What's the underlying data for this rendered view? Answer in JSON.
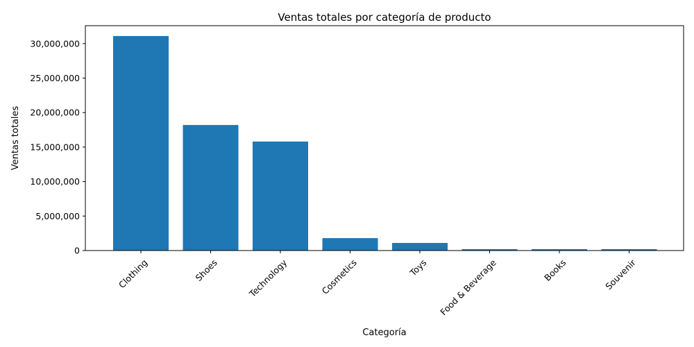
{
  "chart_data": {
    "type": "bar",
    "title": "Ventas totales por categoría de producto",
    "xlabel": "Categoría",
    "ylabel": "Ventas totales",
    "categories": [
      "Clothing",
      "Shoes",
      "Technology",
      "Cosmetics",
      "Toys",
      "Food & Beverage",
      "Books",
      "Souvenir"
    ],
    "values": [
      31100000,
      18200000,
      15800000,
      1800000,
      1100000,
      200000,
      200000,
      200000
    ],
    "ylim": [
      0,
      32600000
    ],
    "yticks": [
      0,
      5000000,
      10000000,
      15000000,
      20000000,
      25000000,
      30000000
    ],
    "ytick_labels": [
      "0",
      "5,000,000",
      "10,000,000",
      "15,000,000",
      "20,000,000",
      "25,000,000",
      "30,000,000"
    ],
    "bar_color": "#1f77b4",
    "grid": false,
    "xtick_rotation": 45
  }
}
